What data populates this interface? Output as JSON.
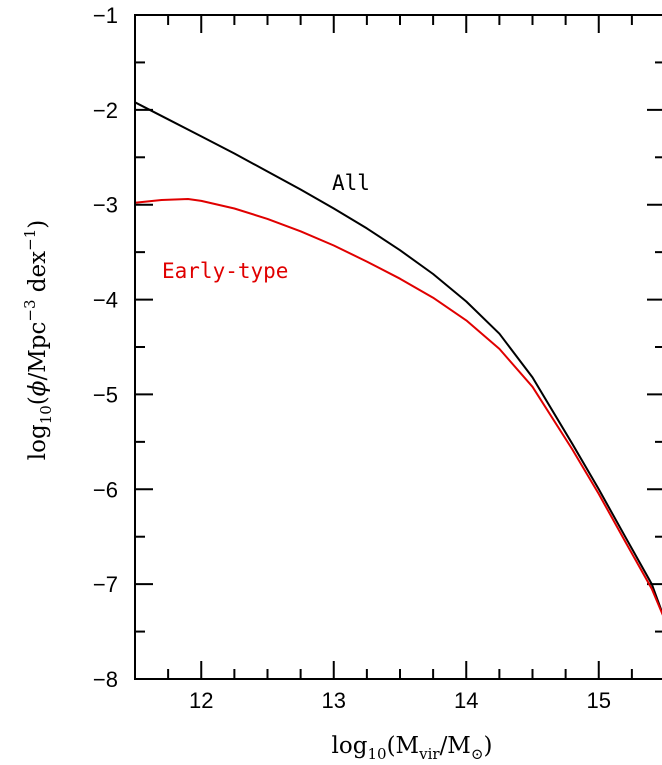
{
  "chart_data": {
    "type": "line",
    "xlim": [
      11.5,
      15.5
    ],
    "ylim": [
      -8,
      -1
    ],
    "x_ticks": [
      "12",
      "13",
      "14",
      "15"
    ],
    "y_ticks": [
      "−1",
      "−2",
      "−3",
      "−4",
      "−5",
      "−6",
      "−7",
      "−8"
    ],
    "xlabel": {
      "prefix": "log",
      "sub1": "10",
      "open": "(M",
      "sub2": "vir",
      "mid": "/M",
      "sub3": "⊙",
      "close": ")"
    },
    "ylabel": {
      "prefix": "log",
      "sub1": "10",
      "open": "(",
      "phi": "ϕ",
      "mid": "/Mpc",
      "sup1": "−3",
      "dex": " dex",
      "sup2": "−1",
      "close": ")"
    },
    "grid": false,
    "series": [
      {
        "name": "All",
        "color": "#000000",
        "x": [
          11.5,
          11.75,
          12.0,
          12.25,
          12.5,
          12.75,
          13.0,
          13.25,
          13.5,
          13.75,
          14.0,
          14.25,
          14.5,
          14.8,
          15.0,
          15.2,
          15.4,
          15.5
        ],
        "y": [
          -1.92,
          -2.1,
          -2.28,
          -2.46,
          -2.65,
          -2.84,
          -3.04,
          -3.25,
          -3.48,
          -3.73,
          -4.02,
          -4.36,
          -4.82,
          -5.52,
          -6.0,
          -6.5,
          -7.0,
          -7.38
        ]
      },
      {
        "name": "Early-type",
        "color": "#e00000",
        "x": [
          11.5,
          11.7,
          11.9,
          12.0,
          12.25,
          12.5,
          12.75,
          13.0,
          13.25,
          13.5,
          13.75,
          14.0,
          14.25,
          14.5,
          14.8,
          15.0,
          15.2,
          15.4,
          15.5
        ],
        "y": [
          -2.98,
          -2.95,
          -2.94,
          -2.96,
          -3.04,
          -3.15,
          -3.28,
          -3.43,
          -3.6,
          -3.78,
          -3.98,
          -4.22,
          -4.52,
          -4.92,
          -5.58,
          -6.05,
          -6.55,
          -7.05,
          -7.38
        ]
      }
    ]
  }
}
